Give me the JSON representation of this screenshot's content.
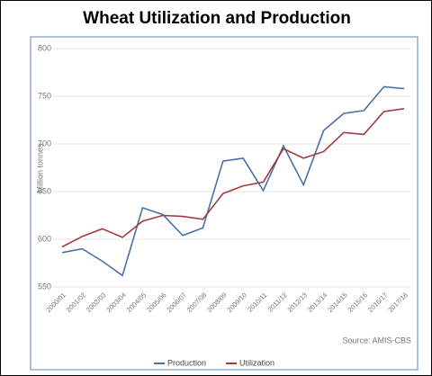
{
  "chart_data": {
    "type": "line",
    "title": "Wheat Utilization and Production",
    "y_label": "Million tonnes",
    "source": "Source: AMIS-CBS",
    "categories": [
      "2000/01",
      "2001/02",
      "2002/03",
      "2003/04",
      "2004/05",
      "2005/06",
      "2006/07",
      "2007/08",
      "2008/09",
      "2009/10",
      "2010/11",
      "2011/12",
      "2012/13",
      "2013/14",
      "2014/15",
      "2015/16",
      "2016/17",
      "2017/18"
    ],
    "series": [
      {
        "name": "Production",
        "color": "#4a70a8",
        "values": [
          586,
          590,
          577,
          562,
          633,
          626,
          604,
          612,
          682,
          685,
          651,
          698,
          657,
          714,
          732,
          735,
          760,
          758
        ]
      },
      {
        "name": "Utilization",
        "color": "#a33b3b",
        "values": [
          592,
          603,
          611,
          602,
          619,
          625,
          624,
          621,
          648,
          656,
          660,
          695,
          685,
          692,
          712,
          710,
          734,
          737
        ]
      }
    ],
    "ylim": [
      550,
      800
    ],
    "yticks": [
      550,
      600,
      650,
      700,
      750,
      800
    ],
    "grid": true,
    "legend": "bottom"
  }
}
